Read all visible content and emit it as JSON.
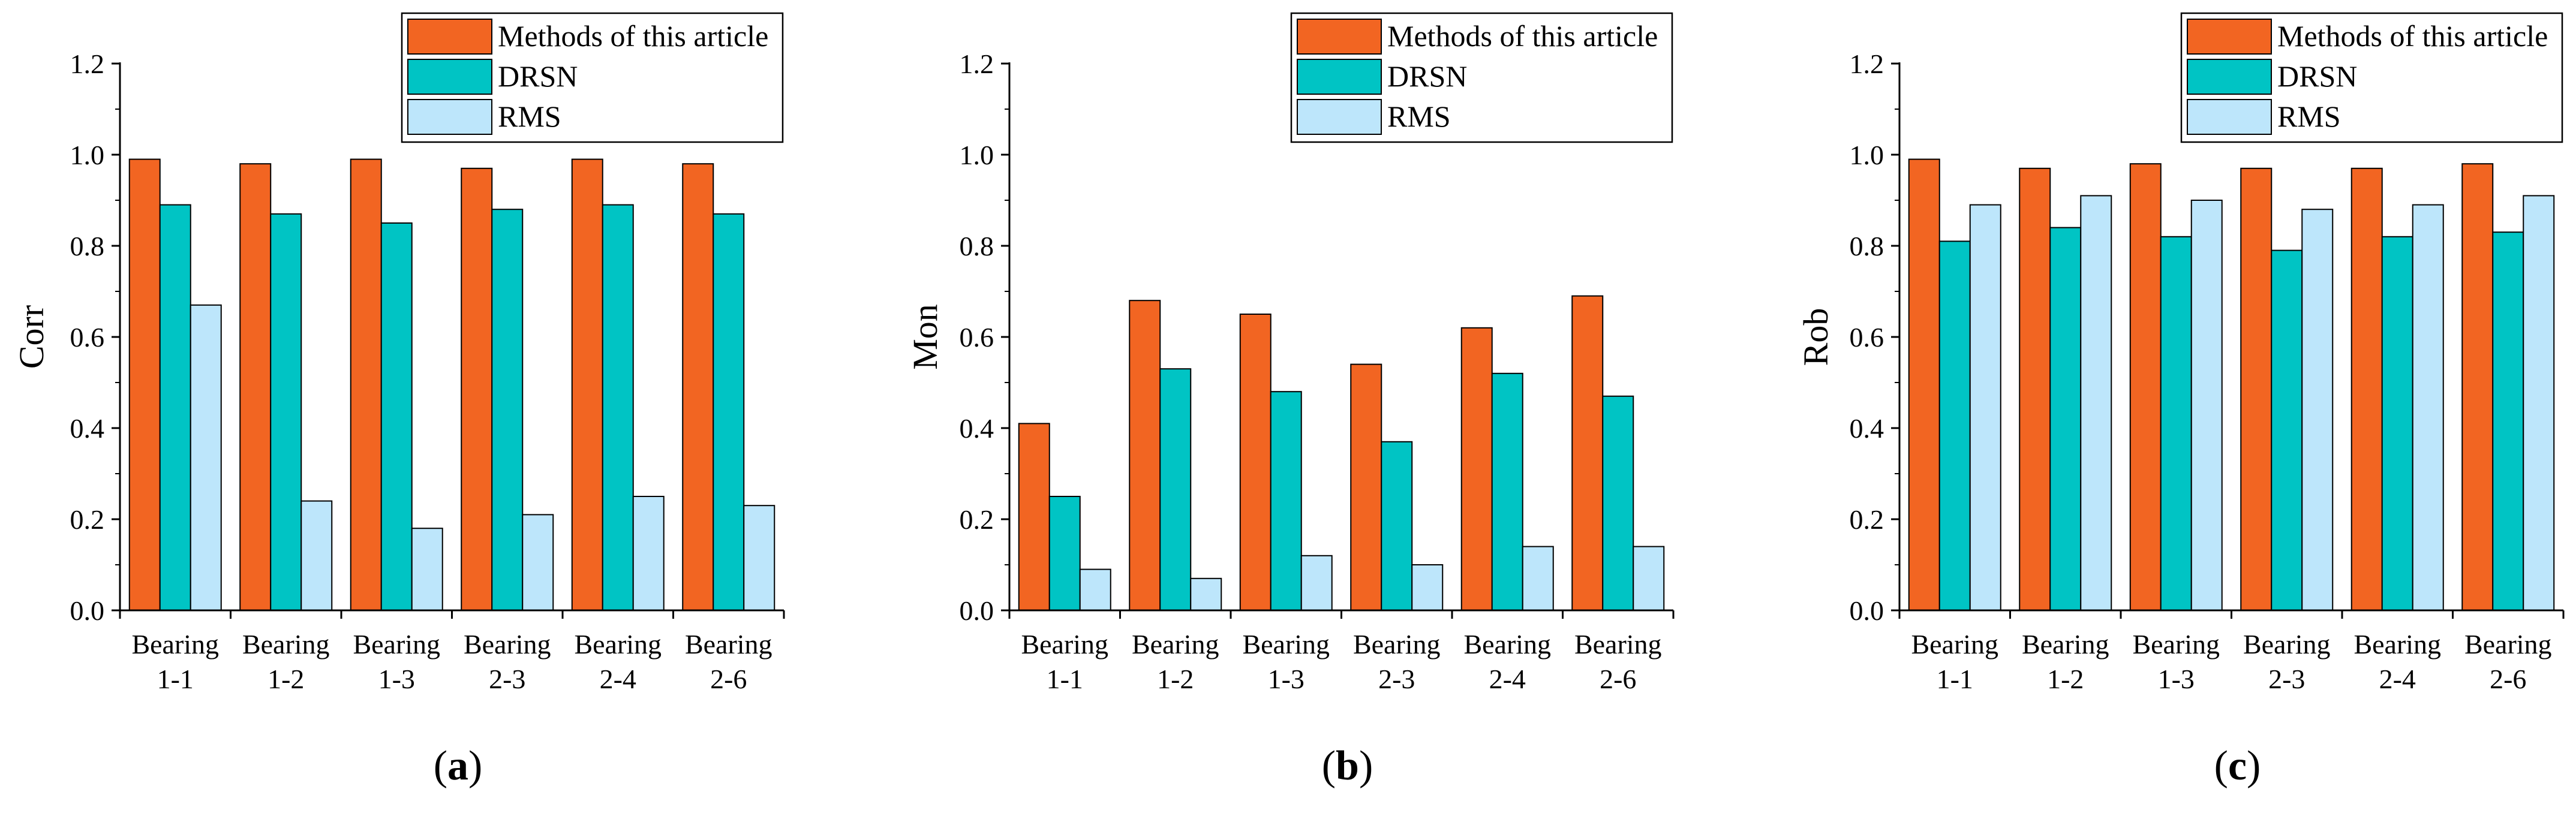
{
  "colors": {
    "methods": "#f26522",
    "drsn": "#00c4c4",
    "rms": "#bde6fb",
    "axis": "#000000"
  },
  "chart_data": [
    {
      "type": "bar",
      "panel": "a",
      "panel_label": "a",
      "ylabel": "Corr",
      "xlabel": "",
      "ylim": [
        0,
        1.2
      ],
      "yticks": [
        "0.0",
        "0.2",
        "0.4",
        "0.6",
        "0.8",
        "1.0",
        "1.2"
      ],
      "categories": [
        [
          "Bearing",
          "1-1"
        ],
        [
          "Bearing",
          "1-2"
        ],
        [
          "Bearing",
          "1-3"
        ],
        [
          "Bearing",
          "2-3"
        ],
        [
          "Bearing",
          "2-4"
        ],
        [
          "Bearing",
          "2-6"
        ]
      ],
      "legend_position": "top-right",
      "series": [
        {
          "name": "Methods of this article",
          "color_key": "methods",
          "values": [
            0.99,
            0.98,
            0.99,
            0.97,
            0.99,
            0.98
          ]
        },
        {
          "name": "DRSN",
          "color_key": "drsn",
          "values": [
            0.89,
            0.87,
            0.85,
            0.88,
            0.89,
            0.87
          ]
        },
        {
          "name": "RMS",
          "color_key": "rms",
          "values": [
            0.67,
            0.24,
            0.18,
            0.21,
            0.25,
            0.23
          ]
        }
      ]
    },
    {
      "type": "bar",
      "panel": "b",
      "panel_label": "b",
      "ylabel": "Mon",
      "xlabel": "",
      "ylim": [
        0,
        1.2
      ],
      "yticks": [
        "0.0",
        "0.2",
        "0.4",
        "0.6",
        "0.8",
        "1.0",
        "1.2"
      ],
      "categories": [
        [
          "Bearing",
          "1-1"
        ],
        [
          "Bearing",
          "1-2"
        ],
        [
          "Bearing",
          "1-3"
        ],
        [
          "Bearing",
          "2-3"
        ],
        [
          "Bearing",
          "2-4"
        ],
        [
          "Bearing",
          "2-6"
        ]
      ],
      "legend_position": "top-right",
      "series": [
        {
          "name": "Methods of this article",
          "color_key": "methods",
          "values": [
            0.41,
            0.68,
            0.65,
            0.54,
            0.62,
            0.69
          ]
        },
        {
          "name": "DRSN",
          "color_key": "drsn",
          "values": [
            0.25,
            0.53,
            0.48,
            0.37,
            0.52,
            0.47
          ]
        },
        {
          "name": "RMS",
          "color_key": "rms",
          "values": [
            0.09,
            0.07,
            0.12,
            0.1,
            0.14,
            0.14
          ]
        }
      ]
    },
    {
      "type": "bar",
      "panel": "c",
      "panel_label": "c",
      "ylabel": "Rob",
      "xlabel": "",
      "ylim": [
        0,
        1.2
      ],
      "yticks": [
        "0.0",
        "0.2",
        "0.4",
        "0.6",
        "0.8",
        "1.0",
        "1.2"
      ],
      "categories": [
        [
          "Bearing",
          "1-1"
        ],
        [
          "Bearing",
          "1-2"
        ],
        [
          "Bearing",
          "1-3"
        ],
        [
          "Bearing",
          "2-3"
        ],
        [
          "Bearing",
          "2-4"
        ],
        [
          "Bearing",
          "2-6"
        ]
      ],
      "legend_position": "top-right",
      "series": [
        {
          "name": "Methods of this article",
          "color_key": "methods",
          "values": [
            0.99,
            0.97,
            0.98,
            0.97,
            0.97,
            0.98
          ]
        },
        {
          "name": "DRSN",
          "color_key": "drsn",
          "values": [
            0.81,
            0.84,
            0.82,
            0.79,
            0.82,
            0.83
          ]
        },
        {
          "name": "RMS",
          "color_key": "rms",
          "values": [
            0.89,
            0.91,
            0.9,
            0.88,
            0.89,
            0.91
          ]
        }
      ]
    }
  ]
}
